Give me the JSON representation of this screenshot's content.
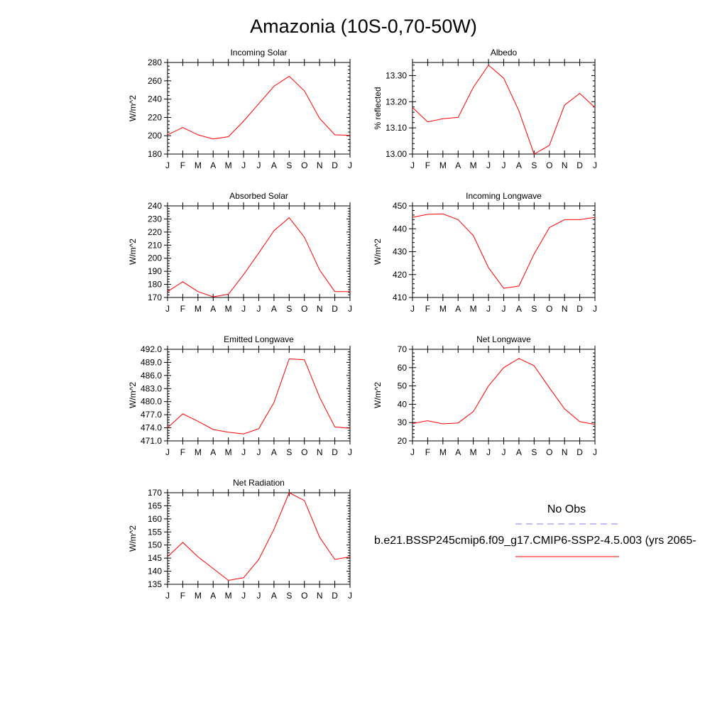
{
  "figure": {
    "title": "Amazonia (10S-0,70-50W)"
  },
  "legend": {
    "obs_label": "No Obs",
    "model_label": "b.e21.BSSP245cmip6.f09_g17.CMIP6-SSP2-4.5.003 (yrs 2065-",
    "obs_color": "#7f7fff",
    "model_color": "#ff0000"
  },
  "chart_data": [
    {
      "type": "line",
      "title": "Incoming Solar",
      "ylabel": "W/m^2",
      "categories": [
        "J",
        "F",
        "M",
        "A",
        "M",
        "J",
        "J",
        "A",
        "S",
        "O",
        "N",
        "D",
        "J"
      ],
      "ylim": [
        180,
        280
      ],
      "yticks": [
        180,
        200,
        220,
        240,
        260,
        280
      ],
      "ytick_labels": [
        "180",
        "200",
        "220",
        "240",
        "260",
        "280"
      ],
      "series": [
        {
          "values": [
            201,
            209,
            201,
            196.5,
            199,
            216,
            235,
            254,
            265,
            249,
            219,
            201,
            200.5
          ]
        }
      ]
    },
    {
      "type": "line",
      "title": "Albedo",
      "ylabel": "% reflected",
      "categories": [
        "J",
        "F",
        "M",
        "A",
        "M",
        "J",
        "J",
        "A",
        "S",
        "O",
        "N",
        "D",
        "J"
      ],
      "ylim": [
        13.0,
        13.35
      ],
      "yticks": [
        13.0,
        13.1,
        13.2,
        13.3
      ],
      "ytick_labels": [
        "13.00",
        "13.10",
        "13.20",
        "13.30"
      ],
      "series": [
        {
          "values": [
            13.178,
            13.123,
            13.135,
            13.14,
            13.255,
            13.34,
            13.29,
            13.165,
            13.0,
            13.033,
            13.187,
            13.232,
            13.178
          ]
        }
      ]
    },
    {
      "type": "line",
      "title": "Absorbed Solar",
      "ylabel": "W/m^2",
      "categories": [
        "J",
        "F",
        "M",
        "A",
        "M",
        "J",
        "J",
        "A",
        "S",
        "O",
        "N",
        "D",
        "J"
      ],
      "ylim": [
        170,
        240
      ],
      "yticks": [
        170,
        180,
        190,
        200,
        210,
        220,
        230,
        240
      ],
      "ytick_labels": [
        "170",
        "180",
        "190",
        "200",
        "210",
        "220",
        "230",
        "240"
      ],
      "series": [
        {
          "values": [
            174.5,
            182,
            174.5,
            170.5,
            172.5,
            187.5,
            204,
            221,
            231,
            216,
            191,
            174.5,
            174.5
          ]
        }
      ]
    },
    {
      "type": "line",
      "title": "Incoming Longwave",
      "ylabel": "W/m^2",
      "categories": [
        "J",
        "F",
        "M",
        "A",
        "M",
        "J",
        "J",
        "A",
        "S",
        "O",
        "N",
        "D",
        "J"
      ],
      "ylim": [
        410,
        450
      ],
      "yticks": [
        410,
        420,
        430,
        440,
        450
      ],
      "ytick_labels": [
        "410",
        "420",
        "430",
        "440",
        "450"
      ],
      "series": [
        {
          "values": [
            445,
            446.3,
            446.5,
            444,
            437,
            423,
            414,
            415,
            429,
            440.5,
            444,
            444,
            445
          ]
        }
      ]
    },
    {
      "type": "line",
      "title": "Emitted Longwave",
      "ylabel": "W/m^2",
      "categories": [
        "J",
        "F",
        "M",
        "A",
        "M",
        "J",
        "J",
        "A",
        "S",
        "O",
        "N",
        "D",
        "J"
      ],
      "ylim": [
        471,
        492
      ],
      "yticks": [
        471,
        474,
        477,
        480,
        483,
        486,
        489,
        492
      ],
      "ytick_labels": [
        "471.0",
        "474.0",
        "477.0",
        "480.0",
        "483.0",
        "486.0",
        "489.0",
        "492.0"
      ],
      "series": [
        {
          "values": [
            474,
            477.2,
            475.5,
            473.6,
            473,
            472.6,
            473.8,
            479.8,
            489.8,
            489.6,
            481,
            474.2,
            473.9
          ]
        }
      ]
    },
    {
      "type": "line",
      "title": "Net Longwave",
      "ylabel": "W/m^2",
      "categories": [
        "J",
        "F",
        "M",
        "A",
        "M",
        "J",
        "J",
        "A",
        "S",
        "O",
        "N",
        "D",
        "J"
      ],
      "ylim": [
        20,
        70
      ],
      "yticks": [
        20,
        30,
        40,
        50,
        60,
        70
      ],
      "ytick_labels": [
        "20",
        "30",
        "40",
        "50",
        "60",
        "70"
      ],
      "series": [
        {
          "values": [
            29.5,
            31,
            29.3,
            29.8,
            36,
            50,
            60,
            65,
            61,
            49,
            37.5,
            30.5,
            29
          ]
        }
      ]
    },
    {
      "type": "line",
      "title": "Net Radiation",
      "ylabel": "W/m^2",
      "categories": [
        "J",
        "F",
        "M",
        "A",
        "M",
        "J",
        "J",
        "A",
        "S",
        "O",
        "N",
        "D",
        "J"
      ],
      "ylim": [
        135,
        170
      ],
      "yticks": [
        135,
        140,
        145,
        150,
        155,
        160,
        165,
        170
      ],
      "ytick_labels": [
        "135",
        "140",
        "145",
        "150",
        "155",
        "160",
        "165",
        "170"
      ],
      "series": [
        {
          "values": [
            145.5,
            151,
            145.5,
            141,
            136.5,
            137.5,
            144.5,
            156,
            170,
            167,
            153,
            144.5,
            145.5
          ]
        }
      ]
    }
  ]
}
